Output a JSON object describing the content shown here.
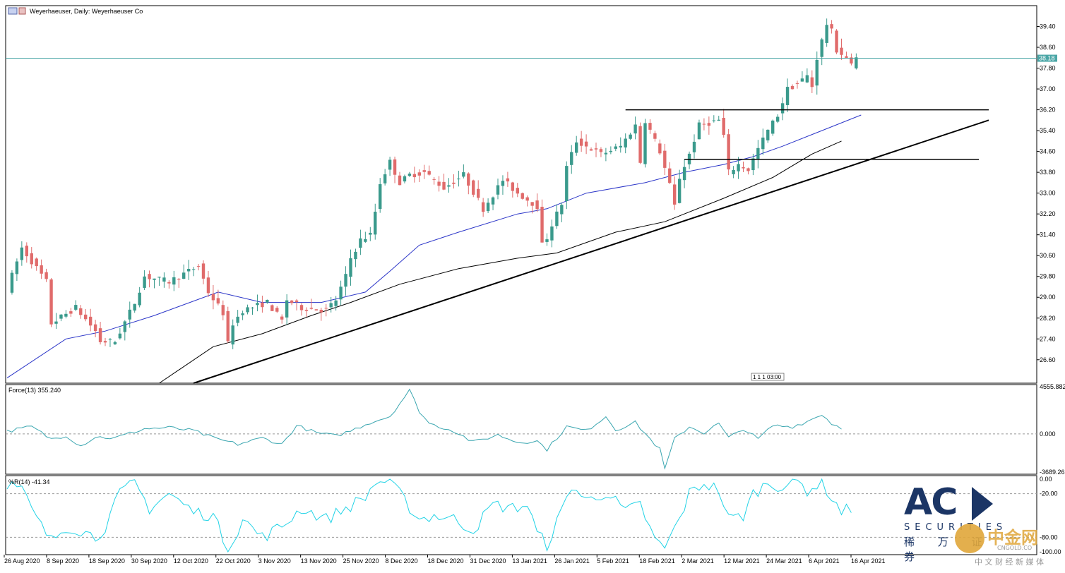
{
  "window": {
    "title": "Weyerhaeuser, Daily:  Weyerhaeuser Co",
    "mini_label": "1 1 1 03:00"
  },
  "chart_data": {
    "type": "candlestick",
    "title": "Weyerhaeuser, Daily:  Weyerhaeuser Co",
    "current_price": 38.18,
    "current_price_label": "38.18",
    "price_axis": {
      "ylim": [
        25.7,
        40.2
      ],
      "ticks": [
        39.4,
        38.6,
        37.8,
        37.0,
        36.2,
        35.4,
        34.6,
        33.8,
        33.0,
        32.2,
        31.4,
        30.6,
        29.8,
        29.0,
        28.2,
        27.4,
        26.6
      ],
      "tick_labels": [
        "39.40",
        "38.60",
        "37.80",
        "37.00",
        "36.20",
        "35.40",
        "34.60",
        "33.80",
        "33.00",
        "32.20",
        "31.40",
        "30.60",
        "29.80",
        "29.00",
        "28.20",
        "27.40",
        "26.60"
      ]
    },
    "x_axis": {
      "bars": 168,
      "tick_labels": [
        "26 Aug 2020",
        "8 Sep 2020",
        "18 Sep 2020",
        "30 Sep 2020",
        "12 Oct 2020",
        "22 Oct 2020",
        "3 Nov 2020",
        "13 Nov 2020",
        "25 Nov 2020",
        "8 Dec 2020",
        "18 Dec 2020",
        "31 Dec 2020",
        "13 Jan 2021",
        "26 Jan 2021",
        "5 Feb 2021",
        "18 Feb 2021",
        "2 Mar 2021",
        "12 Mar 2021",
        "24 Mar 2021",
        "6 Apr 2021",
        "16 Apr 2021"
      ]
    },
    "price_path": [
      [
        0,
        29.3
      ],
      [
        3,
        30.9
      ],
      [
        8,
        29.6
      ],
      [
        9,
        28.0
      ],
      [
        14,
        28.6
      ],
      [
        18,
        27.7
      ],
      [
        19,
        27.3
      ],
      [
        22,
        27.3
      ],
      [
        26,
        28.8
      ],
      [
        28,
        29.8
      ],
      [
        33,
        29.6
      ],
      [
        39,
        30.2
      ],
      [
        41,
        29.2
      ],
      [
        44,
        28.4
      ],
      [
        45,
        27.2
      ],
      [
        46,
        28.0
      ],
      [
        48,
        28.5
      ],
      [
        53,
        28.8
      ],
      [
        56,
        28.1
      ],
      [
        57,
        28.9
      ],
      [
        60,
        28.6
      ],
      [
        65,
        28.5
      ],
      [
        67,
        28.9
      ],
      [
        69,
        29.8
      ],
      [
        70,
        30.5
      ],
      [
        72,
        31.2
      ],
      [
        74,
        31.4
      ],
      [
        75,
        32.3
      ],
      [
        76,
        33.4
      ],
      [
        78,
        34.2
      ],
      [
        80,
        33.4
      ],
      [
        82,
        33.7
      ],
      [
        85,
        33.8
      ],
      [
        89,
        33.2
      ],
      [
        93,
        33.7
      ],
      [
        97,
        32.4
      ],
      [
        101,
        33.5
      ],
      [
        104,
        33.0
      ],
      [
        108,
        32.5
      ],
      [
        109,
        31.0
      ],
      [
        110,
        31.3
      ],
      [
        111,
        31.8
      ],
      [
        113,
        32.6
      ],
      [
        114,
        34.0
      ],
      [
        116,
        35.0
      ],
      [
        121,
        34.5
      ],
      [
        125,
        34.8
      ],
      [
        128,
        35.6
      ],
      [
        129,
        34.2
      ],
      [
        130,
        35.8
      ],
      [
        133,
        34.6
      ],
      [
        135,
        33.3
      ],
      [
        136,
        32.5
      ],
      [
        137,
        33.6
      ],
      [
        139,
        34.5
      ],
      [
        141,
        35.6
      ],
      [
        145,
        35.8
      ],
      [
        146,
        35.2
      ],
      [
        147,
        33.8
      ],
      [
        149,
        34.1
      ],
      [
        151,
        33.9
      ],
      [
        153,
        34.7
      ],
      [
        155,
        35.4
      ],
      [
        157,
        36.0
      ],
      [
        159,
        37.0
      ],
      [
        161,
        37.2
      ],
      [
        163,
        37.5
      ],
      [
        164,
        37.1
      ],
      [
        165,
        38.2
      ],
      [
        167,
        39.5
      ],
      [
        168,
        39.2
      ],
      [
        169,
        38.5
      ],
      [
        171,
        38.2
      ],
      [
        172,
        37.9
      ],
      [
        173,
        38.18
      ]
    ],
    "moving_averages": [
      {
        "color": "#2b35c8",
        "points": [
          [
            0,
            25.9
          ],
          [
            12,
            27.4
          ],
          [
            20,
            27.7
          ],
          [
            30,
            28.3
          ],
          [
            43,
            29.2
          ],
          [
            52,
            28.8
          ],
          [
            64,
            28.8
          ],
          [
            73,
            29.2
          ],
          [
            78,
            30.0
          ],
          [
            84,
            31.0
          ],
          [
            92,
            31.5
          ],
          [
            104,
            32.2
          ],
          [
            110,
            32.4
          ],
          [
            118,
            33.0
          ],
          [
            130,
            33.4
          ],
          [
            138,
            33.8
          ],
          [
            146,
            34.1
          ],
          [
            152,
            34.4
          ],
          [
            158,
            34.8
          ],
          [
            166,
            35.4
          ],
          [
            174,
            36.0
          ]
        ]
      },
      {
        "color": "#000000",
        "points": [
          [
            31,
            25.7
          ],
          [
            42,
            27.1
          ],
          [
            52,
            27.6
          ],
          [
            62,
            28.3
          ],
          [
            70,
            28.8
          ],
          [
            80,
            29.5
          ],
          [
            92,
            30.1
          ],
          [
            104,
            30.5
          ],
          [
            112,
            30.7
          ],
          [
            124,
            31.5
          ],
          [
            134,
            31.9
          ],
          [
            146,
            32.8
          ],
          [
            156,
            33.6
          ],
          [
            164,
            34.5
          ],
          [
            170,
            35.0
          ]
        ]
      }
    ],
    "drawn_lines": [
      {
        "name": "rising-trendline",
        "points": [
          [
            38,
            25.7
          ],
          [
            200,
            35.8
          ]
        ],
        "color": "#000000"
      },
      {
        "name": "resistance-line",
        "points": [
          [
            126,
            36.2
          ],
          [
            200,
            36.2
          ]
        ],
        "color": "#000000"
      },
      {
        "name": "support-line",
        "points": [
          [
            138,
            34.3
          ],
          [
            198,
            34.3
          ]
        ],
        "color": "#000000"
      }
    ],
    "force_index": {
      "label": "Force(13) 355.240",
      "ylim": [
        -3689.263,
        4555.882
      ],
      "tick_labels": [
        "4555.882",
        "0.000",
        "-3689.263"
      ],
      "values": [
        [
          0,
          250
        ],
        [
          5,
          700
        ],
        [
          9,
          -500
        ],
        [
          12,
          -150
        ],
        [
          15,
          -1150
        ],
        [
          18,
          -300
        ],
        [
          22,
          -400
        ],
        [
          28,
          500
        ],
        [
          33,
          600
        ],
        [
          38,
          300
        ],
        [
          42,
          -400
        ],
        [
          47,
          -1000
        ],
        [
          52,
          -400
        ],
        [
          56,
          -1000
        ],
        [
          59,
          800
        ],
        [
          63,
          100
        ],
        [
          67,
          -200
        ],
        [
          70,
          300
        ],
        [
          74,
          1100
        ],
        [
          78,
          1700
        ],
        [
          82,
          4200
        ],
        [
          84,
          2200
        ],
        [
          86,
          1000
        ],
        [
          91,
          300
        ],
        [
          95,
          -800
        ],
        [
          100,
          -100
        ],
        [
          104,
          -800
        ],
        [
          108,
          -700
        ],
        [
          110,
          -1500
        ],
        [
          114,
          700
        ],
        [
          118,
          300
        ],
        [
          122,
          1700
        ],
        [
          124,
          400
        ],
        [
          128,
          1100
        ],
        [
          131,
          -500
        ],
        [
          133,
          -1500
        ],
        [
          134,
          -3400
        ],
        [
          136,
          -500
        ],
        [
          139,
          700
        ],
        [
          142,
          100
        ],
        [
          145,
          1000
        ],
        [
          147,
          -400
        ],
        [
          150,
          500
        ],
        [
          153,
          -500
        ],
        [
          156,
          800
        ],
        [
          160,
          700
        ],
        [
          163,
          1200
        ],
        [
          166,
          1900
        ],
        [
          168,
          1000
        ],
        [
          170,
          600
        ]
      ]
    },
    "williams_r": {
      "label": "%R(14) -41.34",
      "ylim": [
        -100,
        0
      ],
      "tick_labels": [
        "0.00",
        "-20.00",
        "-80.00",
        "-100.00"
      ],
      "levels": [
        -20,
        -80
      ],
      "values": [
        [
          0,
          -5
        ],
        [
          3,
          -15
        ],
        [
          6,
          -55
        ],
        [
          9,
          -85
        ],
        [
          12,
          -65
        ],
        [
          15,
          -70
        ],
        [
          18,
          -80
        ],
        [
          20,
          -65
        ],
        [
          23,
          -20
        ],
        [
          26,
          -5
        ],
        [
          29,
          -40
        ],
        [
          33,
          -20
        ],
        [
          38,
          -45
        ],
        [
          42,
          -50
        ],
        [
          45,
          -98
        ],
        [
          48,
          -55
        ],
        [
          52,
          -80
        ],
        [
          56,
          -65
        ],
        [
          60,
          -40
        ],
        [
          65,
          -55
        ],
        [
          69,
          -40
        ],
        [
          73,
          -25
        ],
        [
          75,
          -5
        ],
        [
          78,
          -2
        ],
        [
          81,
          -30
        ],
        [
          84,
          -55
        ],
        [
          87,
          -50
        ],
        [
          91,
          -55
        ],
        [
          95,
          -70
        ],
        [
          99,
          -35
        ],
        [
          103,
          -40
        ],
        [
          106,
          -35
        ],
        [
          108,
          -75
        ],
        [
          110,
          -90
        ],
        [
          113,
          -45
        ],
        [
          115,
          -8
        ],
        [
          118,
          -30
        ],
        [
          122,
          -18
        ],
        [
          126,
          -45
        ],
        [
          129,
          -35
        ],
        [
          132,
          -85
        ],
        [
          134,
          -95
        ],
        [
          137,
          -55
        ],
        [
          139,
          -20
        ],
        [
          142,
          -5
        ],
        [
          145,
          -15
        ],
        [
          147,
          -55
        ],
        [
          150,
          -50
        ],
        [
          152,
          -20
        ],
        [
          155,
          -5
        ],
        [
          158,
          -10
        ],
        [
          161,
          -3
        ],
        [
          163,
          -15
        ],
        [
          166,
          -5
        ],
        [
          168,
          -25
        ],
        [
          170,
          -45
        ],
        [
          172,
          -40
        ]
      ]
    }
  },
  "branding": {
    "logo_text": "AC",
    "logo_sub": "SECURITIES",
    "logo_cn": "稀 万 证 券",
    "cngold_text": "中金网",
    "cngold_url": "CNGOLD.CO",
    "cngold_tagline": "中 文 财 经 新 媒 体",
    "colors": {
      "logo": "#1b3565",
      "cngold": "#e0a63a",
      "candle_up": "#3a9a8c",
      "candle_down": "#e06b6b"
    }
  }
}
